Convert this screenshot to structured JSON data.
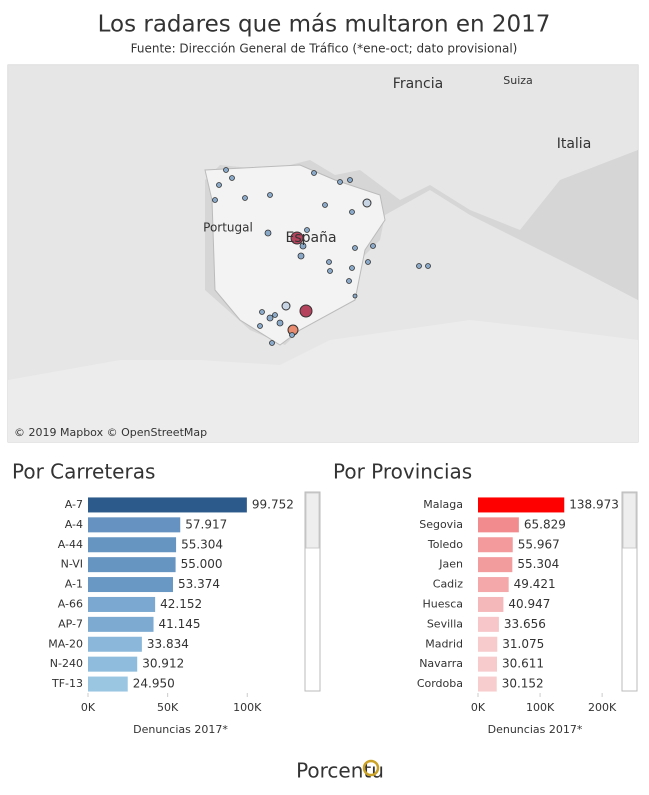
{
  "title": "Los radares que más multaron en 2017",
  "subtitle": "Fuente: Dirección General de Tráfico (*ene-oct; dato provisional)",
  "map": {
    "labels": [
      "Francia",
      "Portugal",
      "España",
      "Italia",
      "Suiza"
    ],
    "attribution": "© 2019 Mapbox © OpenStreetMap"
  },
  "footer": "Porcentu",
  "chart_data": [
    {
      "type": "bar",
      "orientation": "horizontal",
      "title": "Por Carreteras",
      "categories": [
        "A-7",
        "A-4",
        "A-44",
        "N-VI",
        "A-1",
        "A-66",
        "AP-7",
        "MA-20",
        "N-240",
        "TF-13"
      ],
      "values": [
        99752,
        57917,
        55304,
        55000,
        53374,
        42152,
        41145,
        33834,
        30912,
        24950
      ],
      "value_labels": [
        "99.752",
        "57.917",
        "55.304",
        "55.000",
        "53.374",
        "42.152",
        "41.145",
        "33.834",
        "30.912",
        "24.950"
      ],
      "colors": [
        "#2c5a8a",
        "#6592c0",
        "#6795c2",
        "#6795c2",
        "#6a98c4",
        "#7ba8d0",
        "#7daad1",
        "#8bb8da",
        "#8fbcdc",
        "#9ac6e2"
      ],
      "xlim": [
        0,
        135000
      ],
      "xticks": [
        {
          "value": 0,
          "label": "0K"
        },
        {
          "value": 50000,
          "label": "50K"
        },
        {
          "value": 100000,
          "label": "100K"
        }
      ],
      "xlabel": "Denuncias 2017*"
    },
    {
      "type": "bar",
      "orientation": "horizontal",
      "title": "Por Provincias",
      "categories": [
        "Malaga",
        "Segovia",
        "Toledo",
        "Jaen",
        "Cadiz",
        "Huesca",
        "Sevilla",
        "Madrid",
        "Navarra",
        "Cordoba"
      ],
      "values": [
        138973,
        65829,
        55967,
        55304,
        49421,
        40947,
        33656,
        31075,
        30611,
        30152
      ],
      "value_labels": [
        "138.973",
        "65.829",
        "55.967",
        "55.304",
        "49.421",
        "40.947",
        "33.656",
        "31.075",
        "30.611",
        "30.152"
      ],
      "colors": [
        "#ff0000",
        "#f28b8d",
        "#f39a9c",
        "#f39c9e",
        "#f4a8aa",
        "#f5b8ba",
        "#f7c6c8",
        "#f7cacb",
        "#f7cbcc",
        "#f8cdce"
      ],
      "xlim": [
        0,
        232000
      ],
      "xticks": [
        {
          "value": 0,
          "label": "0K"
        },
        {
          "value": 100000,
          "label": "100K"
        },
        {
          "value": 200000,
          "label": "200K"
        }
      ],
      "xlabel": "Denuncias 2017*"
    }
  ]
}
